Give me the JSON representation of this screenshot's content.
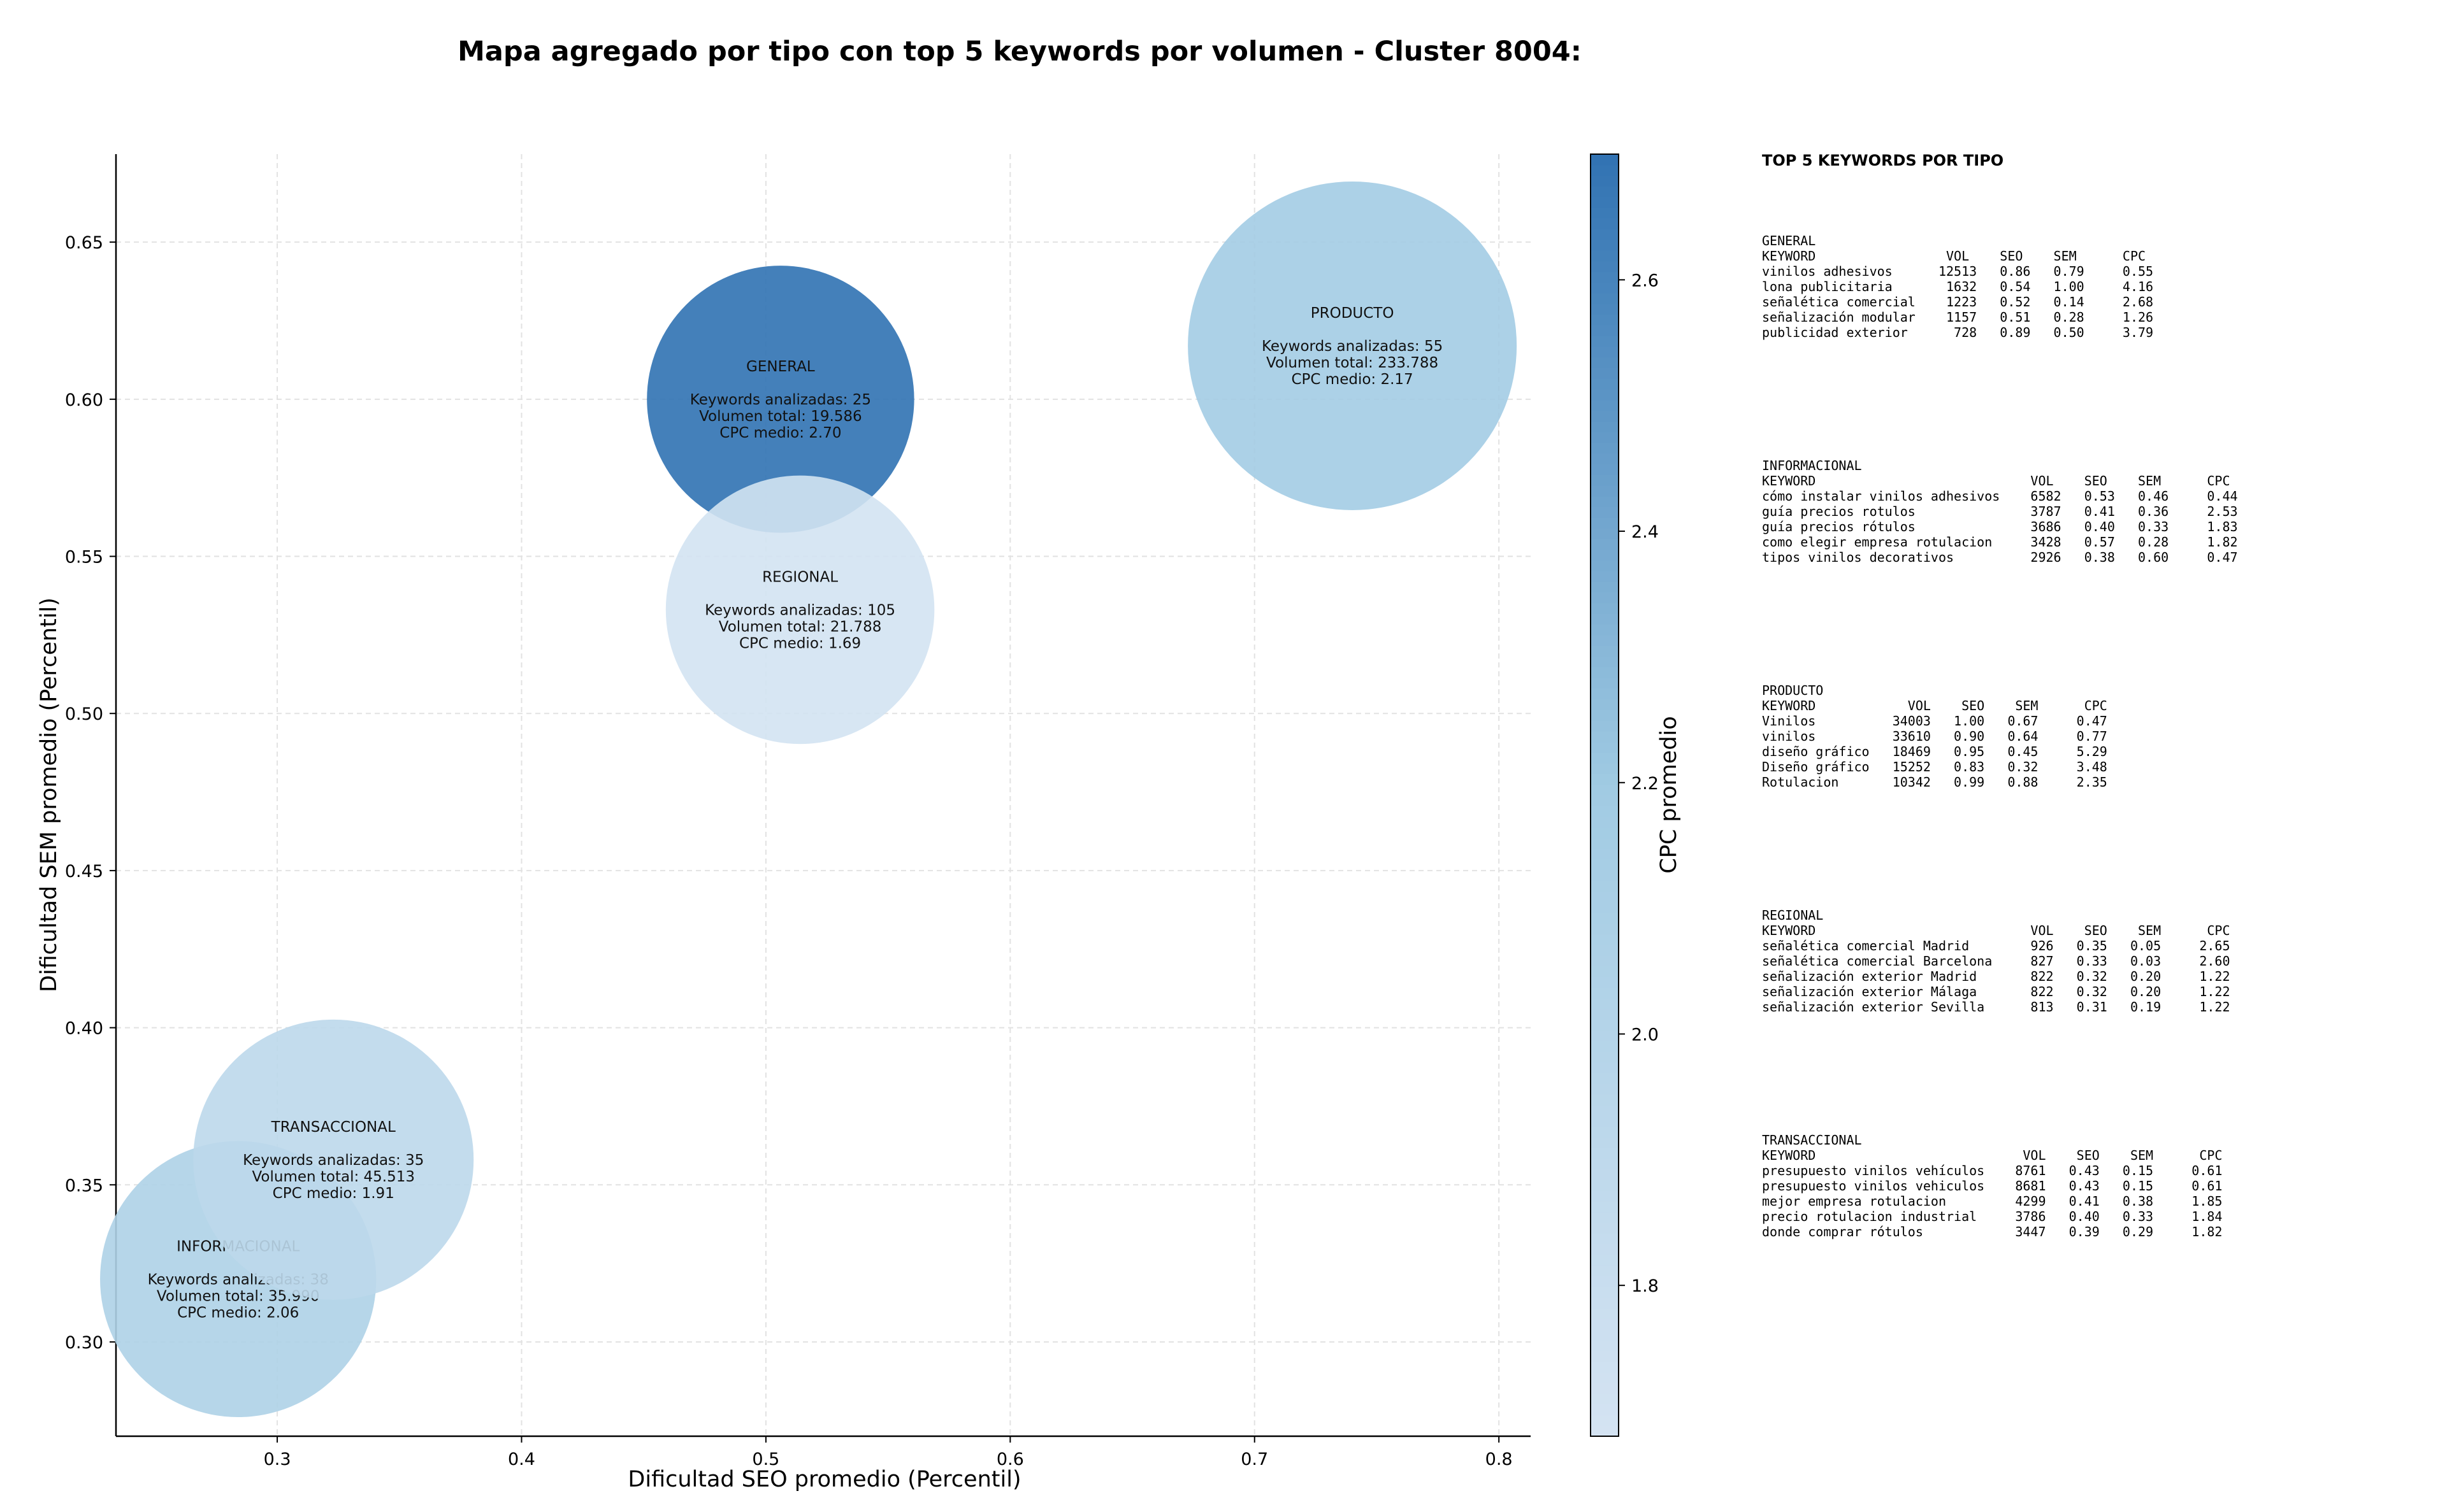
{
  "chart_data": {
    "type": "scatter",
    "variant": "bubble",
    "title": "Mapa agregado por tipo con top 5 keywords por volumen - Cluster 8004:",
    "xlabel": "Dificultad SEO promedio (Percentil)",
    "ylabel": "Dificultad SEM promedio (Percentil)",
    "xlim": [
      0.234,
      0.813
    ],
    "ylim": [
      0.27,
      0.678
    ],
    "x_ticks": [
      0.3,
      0.4,
      0.5,
      0.6,
      0.7,
      0.8
    ],
    "y_ticks": [
      0.3,
      0.35,
      0.4,
      0.45,
      0.5,
      0.55,
      0.6,
      0.65
    ],
    "grid": true,
    "bubble_size_encodes": "Volumen total",
    "color_encodes": "CPC promedio",
    "colorbar": {
      "label": "CPC promedio",
      "range": [
        1.68,
        2.7
      ],
      "ticks": [
        1.8,
        2.0,
        2.2,
        2.4,
        2.6
      ],
      "color_low": "#d4e3f2",
      "color_mid": "#a1cbe3",
      "color_high": "#3072b2"
    },
    "points": [
      {
        "name": "GENERAL",
        "x": 0.506,
        "y": 0.6,
        "keywords": 25,
        "volume": 19586,
        "cpc": 2.7,
        "lines": [
          "GENERAL",
          "",
          "Keywords analizadas: 25",
          "Volumen total: 19.586",
          "CPC medio: 2.70"
        ]
      },
      {
        "name": "INFORMACIONAL",
        "x": 0.284,
        "y": 0.32,
        "keywords": 38,
        "volume": 35990,
        "cpc": 2.06,
        "lines": [
          "INFORMACIONAL",
          "",
          "Keywords analizadas: 38",
          "Volumen total: 35.990",
          "CPC medio: 2.06"
        ]
      },
      {
        "name": "PRODUCTO",
        "x": 0.74,
        "y": 0.617,
        "keywords": 55,
        "volume": 233788,
        "cpc": 2.17,
        "lines": [
          "PRODUCTO",
          "",
          "Keywords analizadas: 55",
          "Volumen total: 233.788",
          "CPC medio: 2.17"
        ]
      },
      {
        "name": "REGIONAL",
        "x": 0.514,
        "y": 0.533,
        "keywords": 105,
        "volume": 21788,
        "cpc": 1.69,
        "lines": [
          "REGIONAL",
          "",
          "Keywords analizadas: 105",
          "Volumen total: 21.788",
          "CPC medio: 1.69"
        ]
      },
      {
        "name": "TRANSACCIONAL",
        "x": 0.323,
        "y": 0.358,
        "keywords": 35,
        "volume": 45513,
        "cpc": 1.91,
        "lines": [
          "TRANSACCIONAL",
          "",
          "Keywords analizadas: 35",
          "Volumen total: 45.513",
          "CPC medio: 1.91"
        ]
      }
    ]
  },
  "side_panel": {
    "title": "TOP 5 KEYWORDS POR TIPO",
    "blocks": [
      {
        "name": "general",
        "text": "GENERAL\nKEYWORD                 VOL    SEO    SEM      CPC\nvinilos adhesivos      12513   0.86   0.79     0.55\nlona publicitaria       1632   0.54   1.00     4.16\nseñalética comercial    1223   0.52   0.14     2.68\nseñalización modular    1157   0.51   0.28     1.26\npublicidad exterior      728   0.89   0.50     3.79"
      },
      {
        "name": "informacional",
        "text": "INFORMACIONAL\nKEYWORD                            VOL    SEO    SEM      CPC\ncómo instalar vinilos adhesivos    6582   0.53   0.46     0.44\nguía precios rotulos               3787   0.41   0.36     2.53\nguía precios rótulos               3686   0.40   0.33     1.83\ncomo elegir empresa rotulacion     3428   0.57   0.28     1.82\ntipos vinilos decorativos          2926   0.38   0.60     0.47"
      },
      {
        "name": "producto",
        "text": "PRODUCTO\nKEYWORD            VOL    SEO    SEM      CPC\nVinilos          34003   1.00   0.67     0.47\nvinilos          33610   0.90   0.64     0.77\ndiseño gráfico   18469   0.95   0.45     5.29\nDiseño gráfico   15252   0.83   0.32     3.48\nRotulacion       10342   0.99   0.88     2.35"
      },
      {
        "name": "regional",
        "text": "REGIONAL\nKEYWORD                            VOL    SEO    SEM      CPC\nseñalética comercial Madrid        926   0.35   0.05     2.65\nseñalética comercial Barcelona     827   0.33   0.03     2.60\nseñalización exterior Madrid       822   0.32   0.20     1.22\nseñalización exterior Málaga       822   0.32   0.20     1.22\nseñalización exterior Sevilla      813   0.31   0.19     1.22"
      },
      {
        "name": "transaccional",
        "text": "TRANSACCIONAL\nKEYWORD                           VOL    SEO    SEM      CPC\npresupuesto vinilos vehículos    8761   0.43   0.15     0.61\npresupuesto vinilos vehiculos    8681   0.43   0.15     0.61\nmejor empresa rotulacion         4299   0.41   0.38     1.85\nprecio rotulacion industrial     3786   0.40   0.33     1.84\ndonde comprar rótulos            3447   0.39   0.29     1.82"
      }
    ]
  }
}
